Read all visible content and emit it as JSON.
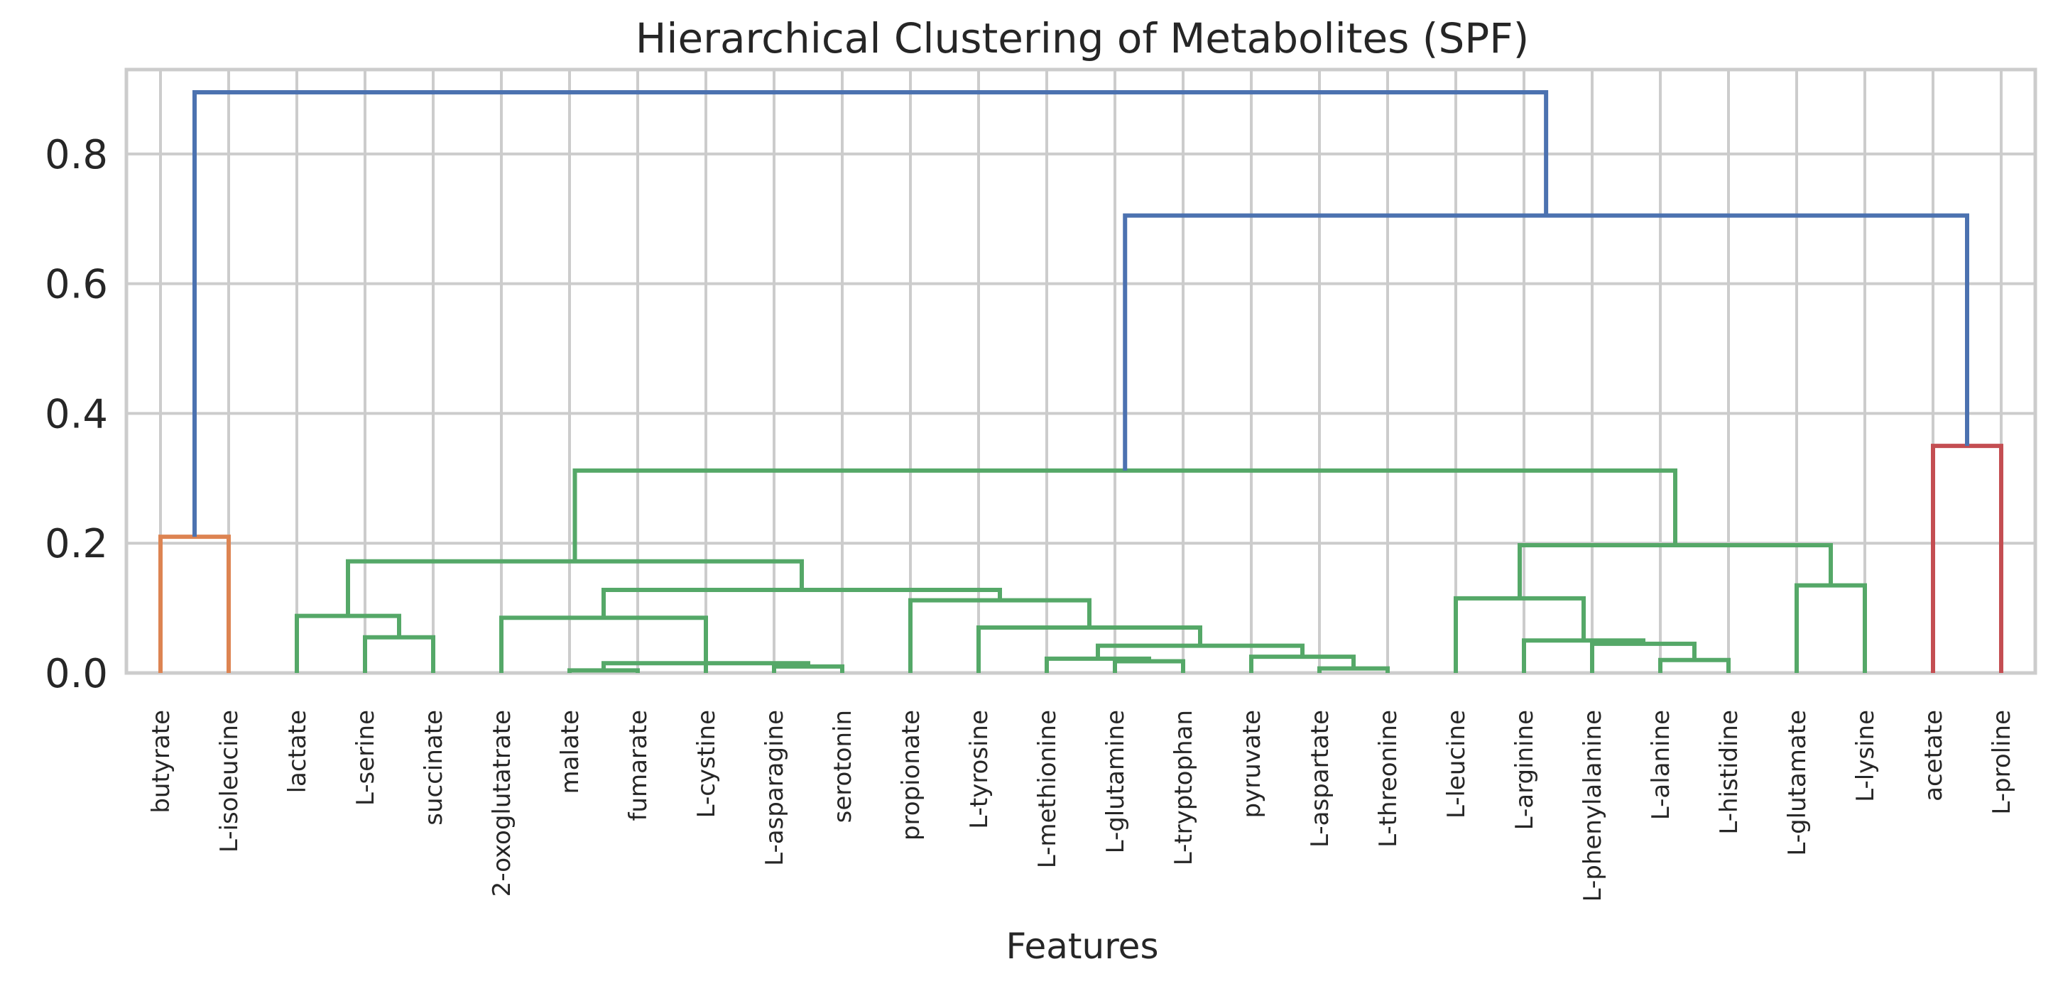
{
  "chart_data": {
    "type": "dendrogram",
    "title": "Hierarchical Clustering of Metabolites (SPF)",
    "xlabel": "Features",
    "ylabel": "",
    "ylim": [
      0,
      0.93
    ],
    "yticks": [
      0.0,
      0.2,
      0.4,
      0.6,
      0.8
    ],
    "ytick_labels": [
      "0.0",
      "0.2",
      "0.4",
      "0.6",
      "0.8"
    ],
    "grid": true,
    "leaves": [
      "butyrate",
      "L-isoleucine",
      "lactate",
      "L-serine",
      "succinate",
      "2-oxoglutatrate",
      "malate",
      "fumarate",
      "L-cystine",
      "L-asparagine",
      "serotonin",
      "propionate",
      "L-tyrosine",
      "L-methionine",
      "L-glutamine",
      "L-tryptophan",
      "pyruvate",
      "L-aspartate",
      "L-threonine",
      "L-leucine",
      "L-arginine",
      "L-phenylalanine",
      "L-alanine",
      "L-histidine",
      "L-glutamate",
      "L-lysine",
      "acetate",
      "L-proline"
    ],
    "colors": {
      "orange": "#dd8452",
      "green": "#55a868",
      "red": "#c44e52",
      "blue": "#4c72b0"
    },
    "links": [
      {
        "a": 0,
        "b": 1,
        "h": 0.21,
        "color": "orange"
      },
      {
        "a": 3,
        "b": 4,
        "h": 0.055,
        "color": "green"
      },
      {
        "a": 2,
        "b": "L1",
        "h": 0.088,
        "color": "green"
      },
      {
        "a": 6,
        "b": 7,
        "h": 0.004,
        "color": "green"
      },
      {
        "a": 9,
        "b": 10,
        "h": 0.01,
        "color": "green"
      },
      {
        "a": "L3",
        "b": "L4",
        "h": 0.015,
        "color": "green"
      },
      {
        "a": 8,
        "b": "L5",
        "h": 0.016,
        "color": "green"
      },
      {
        "a": 5,
        "b": "L6",
        "h": 0.085,
        "color": "green"
      },
      {
        "a": 14,
        "b": 15,
        "h": 0.018,
        "color": "green"
      },
      {
        "a": 13,
        "b": "L8",
        "h": 0.022,
        "color": "green"
      },
      {
        "a": 17,
        "b": 18,
        "h": 0.007,
        "color": "green"
      },
      {
        "a": 16,
        "b": "L10",
        "h": 0.025,
        "color": "green"
      },
      {
        "a": "L9",
        "b": "L11",
        "h": 0.042,
        "color": "green"
      },
      {
        "a": 12,
        "b": "L12",
        "h": 0.07,
        "color": "green"
      },
      {
        "a": 11,
        "b": "L13",
        "h": 0.112,
        "color": "green"
      },
      {
        "a": "L7",
        "b": "L14",
        "h": 0.128,
        "color": "green"
      },
      {
        "a": "L2",
        "b": "L15",
        "h": 0.172,
        "color": "green"
      },
      {
        "a": 22,
        "b": 23,
        "h": 0.02,
        "color": "green"
      },
      {
        "a": 21,
        "b": "L17",
        "h": 0.045,
        "color": "green"
      },
      {
        "a": 20,
        "b": "L18",
        "h": 0.05,
        "color": "green"
      },
      {
        "a": 19,
        "b": "L19",
        "h": 0.115,
        "color": "green"
      },
      {
        "a": 24,
        "b": 25,
        "h": 0.135,
        "color": "green"
      },
      {
        "a": "L20",
        "b": "L21",
        "h": 0.197,
        "color": "green"
      },
      {
        "a": "L16",
        "b": "L22",
        "h": 0.312,
        "color": "green"
      },
      {
        "a": 26,
        "b": 27,
        "h": 0.35,
        "color": "red"
      },
      {
        "a": "L23",
        "b": "L24",
        "h": 0.705,
        "color": "blue"
      },
      {
        "a": "L0",
        "b": "L25",
        "h": 0.895,
        "color": "blue"
      }
    ]
  }
}
